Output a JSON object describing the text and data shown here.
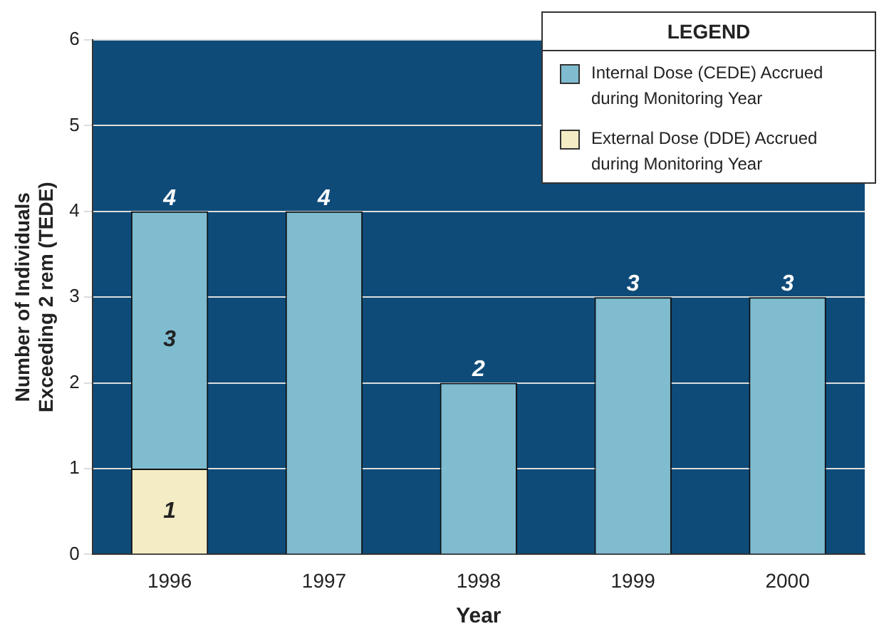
{
  "chart_data": {
    "type": "bar",
    "stacked": true,
    "legend_title": "LEGEND",
    "xlabel": "Year",
    "ylabel": "Number of Individuals\nExceeding 2 rem (TEDE)",
    "categories": [
      "1996",
      "1997",
      "1998",
      "1999",
      "2000"
    ],
    "series": [
      {
        "name": "External Dose (DDE) Accrued during Monitoring Year",
        "color": "#f4ecc4",
        "values": [
          1,
          0,
          0,
          0,
          0
        ],
        "value_labels": [
          "1",
          null,
          null,
          null,
          null
        ]
      },
      {
        "name": "Internal Dose (CEDE) Accrued during Monitoring Year",
        "color": "#7fbccf",
        "values": [
          3,
          4,
          2,
          3,
          3
        ],
        "value_labels": [
          "3",
          null,
          null,
          null,
          null
        ]
      }
    ],
    "totals": [
      "4",
      "4",
      "2",
      "3",
      "3"
    ],
    "ylim": [
      0,
      6
    ],
    "yticks": [
      0,
      1,
      2,
      3,
      4,
      5,
      6
    ],
    "grid": "y",
    "legend": "top right"
  }
}
